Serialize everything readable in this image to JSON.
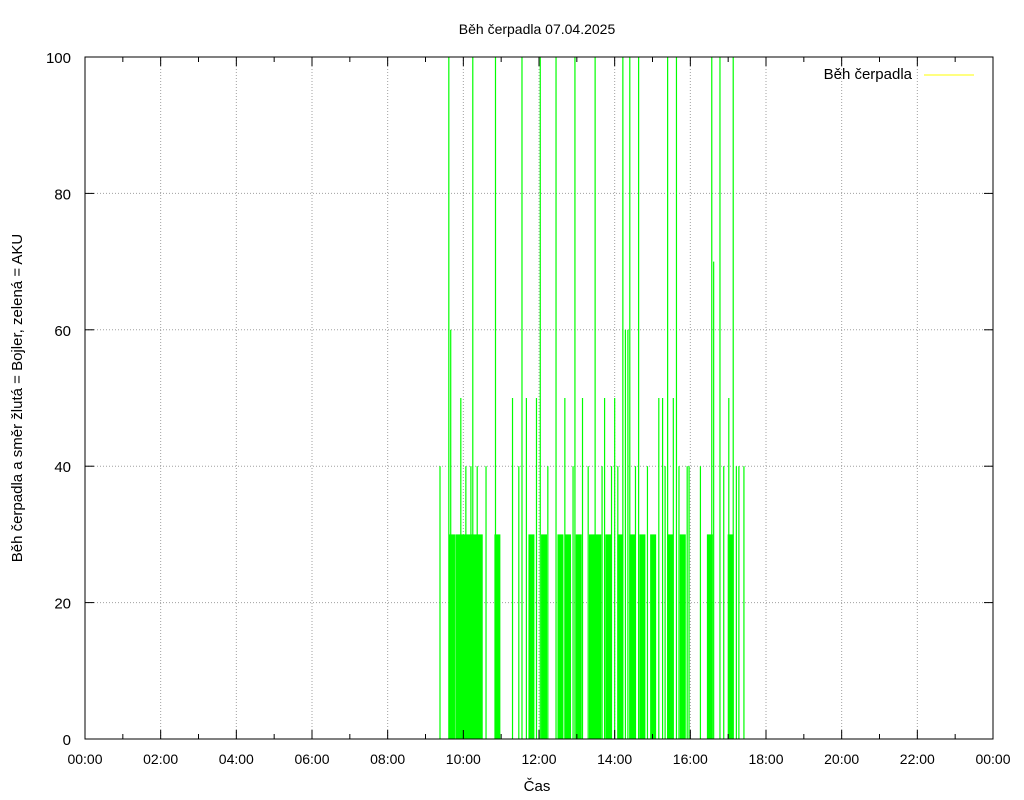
{
  "chart_data": {
    "type": "line",
    "title": "Běh čerpadla 07.04.2025",
    "xlabel": "Čas",
    "ylabel": "Běh čerpadla a směr žlutá = Bojler, zelená = AKU",
    "xlim": [
      "00:00",
      "24:00"
    ],
    "ylim": [
      0,
      100
    ],
    "x_ticks": [
      "00:00",
      "02:00",
      "04:00",
      "06:00",
      "08:00",
      "10:00",
      "12:00",
      "14:00",
      "16:00",
      "18:00",
      "20:00",
      "22:00",
      "00:00"
    ],
    "y_ticks": [
      "0",
      "20",
      "40",
      "60",
      "80",
      "100"
    ],
    "grid": true,
    "legend_position": "top-right",
    "legend": [
      {
        "label": "Běh čerpadla",
        "color": "#ffff00"
      }
    ],
    "series": [
      {
        "color": "#00ff00",
        "points": [
          [
            "09:23",
            40
          ],
          [
            "09:37",
            100
          ],
          [
            "09:40",
            60
          ],
          [
            "09:42",
            30
          ],
          [
            "09:52",
            30
          ],
          [
            "09:56",
            50
          ],
          [
            "10:00",
            30
          ],
          [
            "10:04",
            40
          ],
          [
            "10:09",
            30
          ],
          [
            "10:12",
            40
          ],
          [
            "10:15",
            100
          ],
          [
            "10:18",
            30
          ],
          [
            "10:22",
            40
          ],
          [
            "10:26",
            30
          ],
          [
            "10:36",
            40
          ],
          [
            "10:51",
            100
          ],
          [
            "10:54",
            30
          ],
          [
            "11:18",
            50
          ],
          [
            "11:28",
            40
          ],
          [
            "11:33",
            100
          ],
          [
            "11:40",
            50
          ],
          [
            "11:48",
            30
          ],
          [
            "11:56",
            50
          ],
          [
            "12:02",
            100
          ],
          [
            "12:08",
            30
          ],
          [
            "12:14",
            40
          ],
          [
            "12:27",
            100
          ],
          [
            "12:34",
            30
          ],
          [
            "12:41",
            50
          ],
          [
            "12:46",
            30
          ],
          [
            "12:54",
            40
          ],
          [
            "12:57",
            100
          ],
          [
            "13:03",
            30
          ],
          [
            "13:09",
            50
          ],
          [
            "13:18",
            40
          ],
          [
            "13:24",
            30
          ],
          [
            "13:29",
            100
          ],
          [
            "13:34",
            30
          ],
          [
            "13:40",
            40
          ],
          [
            "13:44",
            50
          ],
          [
            "13:50",
            30
          ],
          [
            "13:55",
            40
          ],
          [
            "14:00",
            50
          ],
          [
            "14:05",
            40
          ],
          [
            "14:09",
            30
          ],
          [
            "14:13",
            100
          ],
          [
            "14:17",
            60
          ],
          [
            "14:21",
            60
          ],
          [
            "14:24",
            100
          ],
          [
            "14:28",
            30
          ],
          [
            "14:33",
            40
          ],
          [
            "14:38",
            100
          ],
          [
            "14:44",
            30
          ],
          [
            "14:52",
            40
          ],
          [
            "15:01",
            30
          ],
          [
            "15:10",
            50
          ],
          [
            "15:16",
            50
          ],
          [
            "15:20",
            40
          ],
          [
            "15:24",
            100
          ],
          [
            "15:28",
            30
          ],
          [
            "15:33",
            50
          ],
          [
            "15:38",
            100
          ],
          [
            "15:42",
            40
          ],
          [
            "15:48",
            30
          ],
          [
            "15:55",
            40
          ],
          [
            "15:58",
            40
          ],
          [
            "16:16",
            40
          ],
          [
            "16:31",
            30
          ],
          [
            "16:34",
            100
          ],
          [
            "16:37",
            70
          ],
          [
            "16:47",
            100
          ],
          [
            "16:53",
            40
          ],
          [
            "17:01",
            50
          ],
          [
            "17:04",
            30
          ],
          [
            "17:08",
            100
          ],
          [
            "17:13",
            40
          ],
          [
            "17:17",
            40
          ],
          [
            "17:25",
            40
          ]
        ]
      }
    ]
  }
}
